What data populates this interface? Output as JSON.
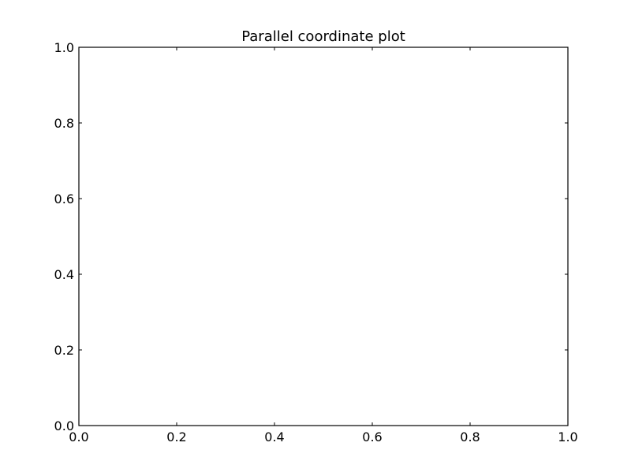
{
  "chart_data": {
    "type": "line",
    "title": "Parallel coordinate plot",
    "xlabel": "",
    "ylabel": "",
    "xlim": [
      0.0,
      1.0
    ],
    "ylim": [
      0.0,
      1.0
    ],
    "x_ticks": [
      "0.0",
      "0.2",
      "0.4",
      "0.6",
      "0.8",
      "1.0"
    ],
    "y_ticks": [
      "0.0",
      "0.2",
      "0.4",
      "0.6",
      "0.8",
      "1.0"
    ],
    "grid": false,
    "series": []
  }
}
